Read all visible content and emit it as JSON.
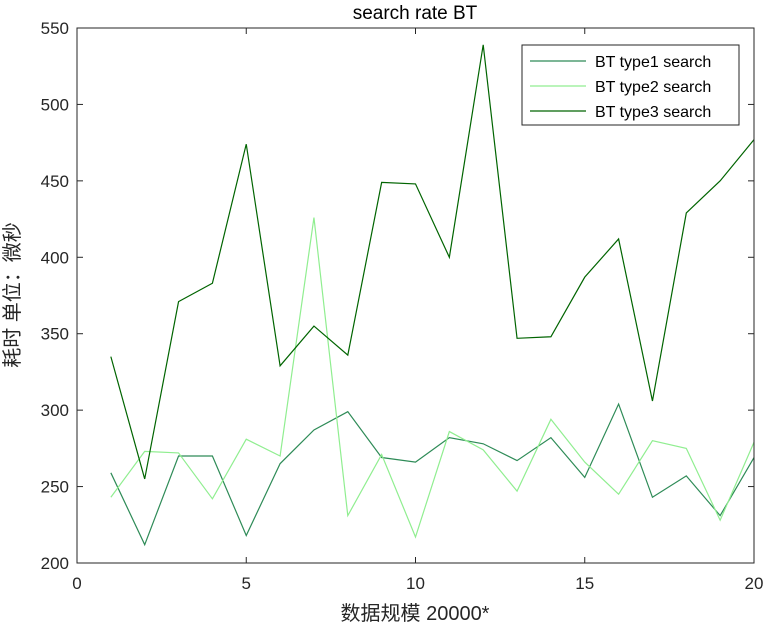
{
  "chart_data": {
    "type": "line",
    "title": "search rate  BT",
    "xlabel": "数据规模 20000*",
    "ylabel": "耗时 单位：微秒",
    "xlim": [
      0,
      20
    ],
    "ylim": [
      200,
      550
    ],
    "xticks": [
      0,
      5,
      10,
      15,
      20
    ],
    "yticks": [
      200,
      250,
      300,
      350,
      400,
      450,
      500,
      550
    ],
    "grid": false,
    "legend_position": "top-right",
    "x": [
      1,
      2,
      3,
      4,
      5,
      6,
      7,
      8,
      9,
      10,
      11,
      12,
      13,
      14,
      15,
      16,
      17,
      18,
      19,
      20
    ],
    "series": [
      {
        "name": "BT type1 search",
        "color": "#2e8b57",
        "values": [
          259,
          212,
          270,
          270,
          218,
          265,
          287,
          299,
          269,
          266,
          282,
          278,
          267,
          282,
          256,
          304,
          243,
          257,
          231,
          269
        ]
      },
      {
        "name": "BT type2 search",
        "color": "#90ee90",
        "values": [
          243,
          273,
          272,
          242,
          281,
          270,
          426,
          231,
          271,
          217,
          286,
          274,
          247,
          294,
          266,
          245,
          280,
          275,
          228,
          279
        ]
      },
      {
        "name": "BT type3 search",
        "color": "#006400",
        "values": [
          335,
          255,
          371,
          383,
          474,
          329,
          355,
          336,
          449,
          448,
          400,
          539,
          347,
          348,
          387,
          412,
          306,
          429,
          450,
          477
        ]
      }
    ]
  }
}
